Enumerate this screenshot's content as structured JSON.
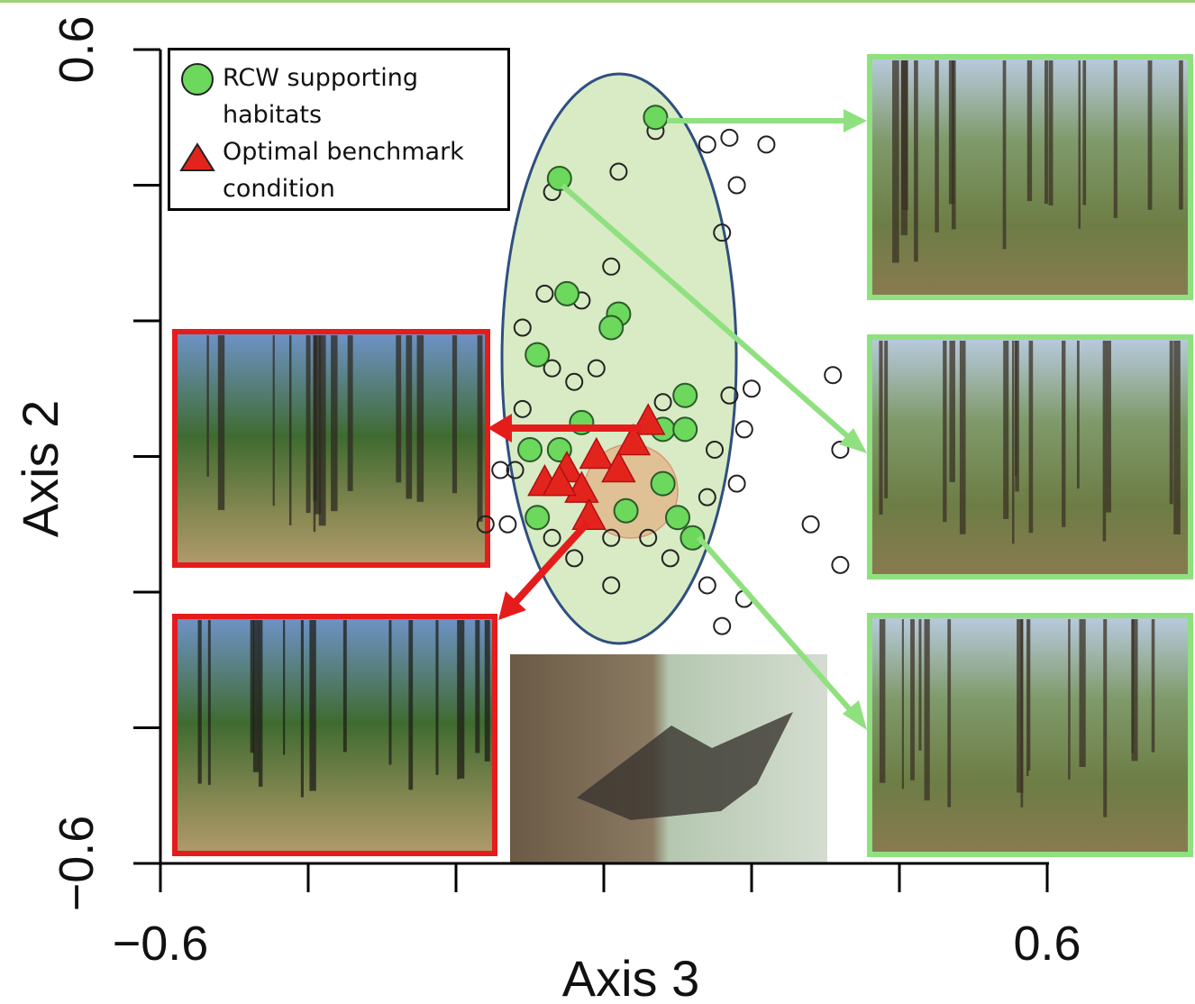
{
  "chart_data": {
    "type": "scatter",
    "xlabel": "Axis 3",
    "ylabel": "Axis 2",
    "xlim": [
      -0.6,
      0.6
    ],
    "ylim": [
      -0.6,
      0.6
    ],
    "xticks": [
      {
        "value": -0.6,
        "label": "−0.6"
      },
      {
        "value": -0.4,
        "label": null
      },
      {
        "value": -0.2,
        "label": null
      },
      {
        "value": 0,
        "label": null
      },
      {
        "value": 0.2,
        "label": null
      },
      {
        "value": 0.4,
        "label": null
      },
      0.6
    ],
    "yticks": [
      {
        "value": -0.6,
        "label": "−0.6"
      },
      {
        "value": -0.4,
        "label": null
      },
      {
        "value": -0.2,
        "label": null
      },
      {
        "value": 0,
        "label": null
      },
      {
        "value": 0.2,
        "label": null
      },
      {
        "value": 0.4,
        "label": null
      },
      0.6
    ],
    "legend": "upper left",
    "series": [
      {
        "color": "none",
        "marker": "circle",
        "x": [
          0.07,
          0.14,
          0.17,
          0.22,
          0.02,
          0.18,
          -0.07,
          0.16,
          0.01,
          -0.08,
          -0.03,
          -0.11,
          -0.07,
          -0.01,
          -0.04,
          0.17,
          0.2,
          0.31,
          0.08,
          -0.11,
          0.19,
          0.32,
          0.15,
          -0.14,
          0.18,
          -0.12,
          0.14,
          -0.13,
          -0.16,
          0.28,
          0.32,
          -0.04,
          0.01,
          0.09,
          0.14,
          0.19,
          0.01,
          0.16,
          -0.07,
          0.06
        ],
        "values": [
          0.48,
          0.46,
          0.47,
          0.46,
          0.42,
          0.4,
          0.39,
          0.33,
          0.28,
          0.24,
          0.23,
          0.19,
          0.13,
          0.13,
          0.11,
          0.09,
          0.1,
          0.12,
          0.08,
          0.07,
          0.04,
          0.01,
          0.01,
          -0.02,
          -0.04,
          -0.02,
          -0.06,
          -0.1,
          -0.1,
          -0.1,
          -0.16,
          -0.15,
          -0.12,
          -0.15,
          -0.19,
          -0.21,
          -0.19,
          -0.25,
          -0.12,
          -0.12
        ]
      },
      {
        "name": "RCW supporting habitats",
        "color": "#6cd85c",
        "marker": "circle",
        "x": [
          0.07,
          -0.06,
          -0.05,
          0.02,
          0.01,
          -0.09,
          0.11,
          0.08,
          0.11,
          -0.1,
          -0.09,
          0.1,
          0.12,
          0.08,
          0.03,
          -0.03,
          -0.06
        ],
        "values": [
          0.5,
          0.41,
          0.24,
          0.21,
          0.19,
          0.15,
          0.09,
          0.04,
          0.04,
          0.01,
          -0.09,
          -0.09,
          -0.12,
          -0.04,
          -0.08,
          0.05,
          0.01
        ]
      },
      {
        "name": "Optimal benchmark condition",
        "color": "#e3241d",
        "marker": "triangle",
        "x": [
          0.06,
          -0.08,
          -0.05,
          -0.01,
          0.04,
          -0.03,
          -0.02,
          0.02,
          -0.06
        ],
        "values": [
          0.05,
          -0.04,
          -0.02,
          0,
          0.02,
          -0.05,
          -0.09,
          -0.02,
          -0.04
        ]
      }
    ]
  }
}
